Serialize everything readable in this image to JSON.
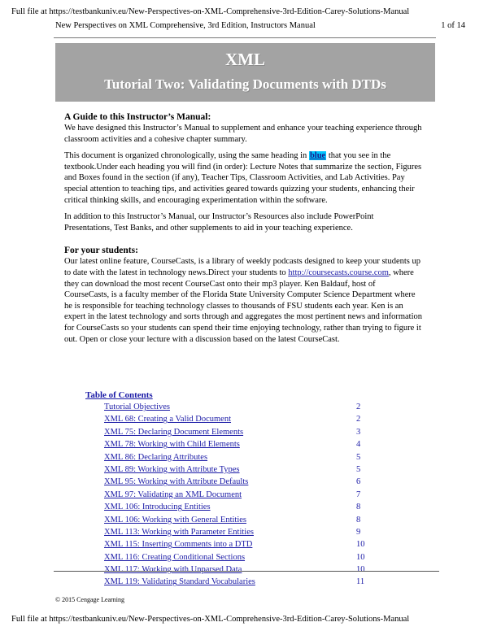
{
  "top_url": "Full file at https://testbankuniv.eu/New-Perspectives-on-XML-Comprehensive-3rd-Edition-Carey-Solutions-Manual",
  "header": {
    "title": "New Perspectives on XML Comprehensive, 3rd Edition, Instructors Manual",
    "page": "1 of 14"
  },
  "banner": {
    "line1": "XML",
    "line2": "Tutorial Two: Validating Documents with DTDs"
  },
  "guide": {
    "heading": "A Guide to this Instructor’s Manual:",
    "p1": "We have designed this Instructor’s Manual to supplement and enhance your teaching experience through classroom activities and a cohesive chapter summary.",
    "p2_before": "This document is organized chronologically, using the same heading in ",
    "p2_highlight": "blue",
    "p2_after": " that you see in the textbook.Under each heading you will find (in order): Lecture Notes that summarize the section, Figures and Boxes found in the section (if any), Teacher Tips, Classroom Activities, and Lab Activities. Pay special attention to teaching tips, and activities geared towards quizzing your students, enhancing their critical thinking skills, and encouraging experimentation within the software.",
    "p3": "In addition to this Instructor’s Manual, our Instructor’s Resources also include PowerPoint Presentations, Test Banks, and other supplements to aid in your teaching experience."
  },
  "students": {
    "heading": "For your students:",
    "p_before": "Our latest online feature, CourseCasts, is a library of weekly podcasts designed to keep your students up to date with the latest in technology news.Direct your students to ",
    "link": "http://coursecasts.course.com",
    "p_after": ", where they can download the most recent CourseCast onto their mp3 player. Ken Baldauf, host of CourseCasts, is a faculty member of the Florida State University Computer Science Department where he is responsible for teaching technology classes to thousands of FSU students each year. Ken is an expert in the latest technology and sorts through and aggregates the most pertinent news and information for CourseCasts so your students can spend their time enjoying technology, rather than trying to figure it out. Open or close your lecture with a discussion based on the latest CourseCast."
  },
  "toc": {
    "heading": "Table of Contents",
    "items": [
      {
        "title": "Tutorial Objectives",
        "page": "2"
      },
      {
        "title": "XML 68: Creating a Valid Document",
        "page": "2"
      },
      {
        "title": "XML 75: Declaring Document Elements",
        "page": "3"
      },
      {
        "title": "XML 78: Working with Child Elements",
        "page": "4"
      },
      {
        "title": "XML 86: Declaring Attributes",
        "page": "5"
      },
      {
        "title": "XML 89: Working with Attribute Types",
        "page": "5"
      },
      {
        "title": "XML 95: Working with Attribute Defaults",
        "page": "6"
      },
      {
        "title": "XML 97: Validating an XML Document",
        "page": "7"
      },
      {
        "title": "XML 106: Introducing Entities",
        "page": "8"
      },
      {
        "title": "XML 106: Working with General Entities",
        "page": "8"
      },
      {
        "title": "XML 113: Working with Parameter Entities",
        "page": "9"
      },
      {
        "title": "XML 115: Inserting Comments into a DTD",
        "page": "10"
      },
      {
        "title": "XML 116: Creating Conditional Sections",
        "page": "10"
      },
      {
        "title": "XML 117: Working with Unparsed Data",
        "page": "10"
      },
      {
        "title": "XML 119: Validating Standard Vocabularies",
        "page": "11"
      }
    ]
  },
  "footer": {
    "copyright": "© 2015 Cengage Learning",
    "bottom_url": "Full file at https://testbankuniv.eu/New-Perspectives-on-XML-Comprehensive-3rd-Edition-Carey-Solutions-Manual"
  }
}
